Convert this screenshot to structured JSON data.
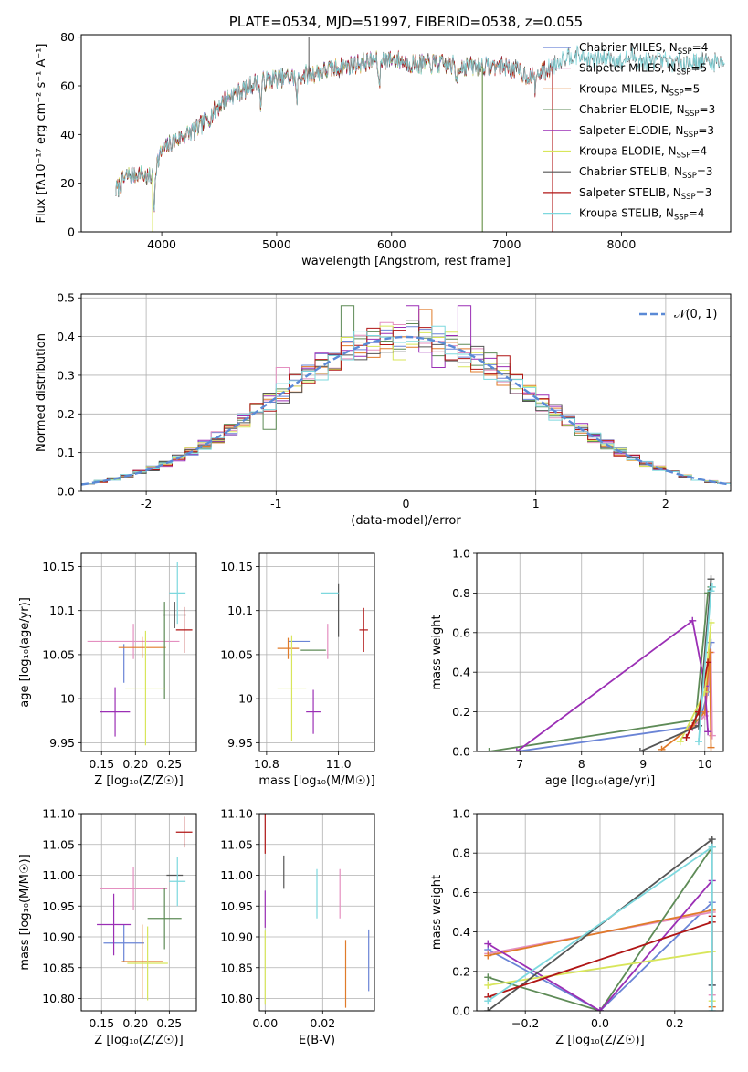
{
  "colors": {
    "Chabrier MILES": "#6a84d6",
    "Salpeter MILES": "#e48fc0",
    "Kroupa MILES": "#e07b2a",
    "Chabrier ELODIE": "#5e8b57",
    "Salpeter ELODIE": "#9b2fb5",
    "Kroupa ELODIE": "#d8e65a",
    "Chabrier STELIB": "#555555",
    "Salpeter STELIB": "#b01515",
    "Kroupa STELIB": "#7dd8de"
  },
  "chart_data": [
    {
      "id": "spectrum",
      "type": "line",
      "title": "PLATE=0534, MJD=51997, FIBERID=0538, z=0.055",
      "xlabel": "wavelength [Angstrom, rest frame]",
      "ylabel": "Flux [fλ10⁻¹⁷ erg cm⁻² s⁻¹ A⁻¹]",
      "xlim": [
        3300,
        8950
      ],
      "ylim": [
        0,
        81
      ],
      "xticks": [
        4000,
        5000,
        6000,
        7000,
        8000
      ],
      "yticks": [
        0,
        20,
        40,
        60,
        80
      ],
      "legend_location": "right",
      "legend": [
        {
          "model": "Chabrier MILES",
          "label": "Chabrier MILES, N",
          "sub": "SSP",
          "n": "=4"
        },
        {
          "model": "Salpeter MILES",
          "label": "Salpeter MILES, N",
          "sub": "SSP",
          "n": "=5"
        },
        {
          "model": "Kroupa MILES",
          "label": "Kroupa MILES, N",
          "sub": "SSP",
          "n": "=5"
        },
        {
          "model": "Chabrier ELODIE",
          "label": "Chabrier ELODIE, N",
          "sub": "SSP",
          "n": "=3"
        },
        {
          "model": "Salpeter ELODIE",
          "label": "Salpeter ELODIE, N",
          "sub": "SSP",
          "n": "=3"
        },
        {
          "model": "Kroupa ELODIE",
          "label": "Kroupa ELODIE, N",
          "sub": "SSP",
          "n": "=4"
        },
        {
          "model": "Chabrier STELIB",
          "label": "Chabrier STELIB, N",
          "sub": "SSP",
          "n": "=3"
        },
        {
          "model": "Salpeter STELIB",
          "label": "Salpeter STELIB, N",
          "sub": "SSP",
          "n": "=3"
        },
        {
          "model": "Kroupa STELIB",
          "label": "Kroupa STELIB, N",
          "sub": "SSP",
          "n": "=4"
        }
      ],
      "continuum": {
        "x": [
          3600,
          3700,
          3800,
          3900,
          4000,
          4100,
          4200,
          4300,
          4400,
          4500,
          4600,
          4700,
          4800,
          4900,
          5000,
          5200,
          5400,
          5600,
          5800,
          6000,
          6200,
          6400,
          6600,
          6800,
          7000,
          7200,
          7300,
          7400,
          7500,
          7600,
          7700,
          7800,
          7900,
          8000,
          8100,
          8200
        ],
        "y": [
          17,
          23,
          24,
          22,
          33,
          37,
          40,
          42,
          46,
          52,
          56,
          58,
          61,
          62,
          63,
          64,
          66,
          68,
          70,
          71,
          69,
          69,
          68,
          68,
          68,
          64,
          65,
          68,
          72,
          73,
          71,
          71,
          72,
          70,
          72,
          70
        ]
      },
      "dips": [
        [
          3933,
          16
        ],
        [
          4861,
          10
        ],
        [
          5175,
          10
        ],
        [
          5892,
          12
        ],
        [
          6563,
          6
        ],
        [
          7250,
          5
        ]
      ],
      "model_extents": [
        {
          "model": "Chabrier MILES",
          "xmax": 7400
        },
        {
          "model": "Salpeter MILES",
          "xmax": 7400
        },
        {
          "model": "Kroupa MILES",
          "xmax": 7400
        },
        {
          "model": "Chabrier ELODIE",
          "xmax": 6790
        },
        {
          "model": "Salpeter ELODIE",
          "xmax": 6790
        },
        {
          "model": "Kroupa ELODIE",
          "xmax": 6790
        },
        {
          "model": "Chabrier STELIB",
          "xmax": 8900
        },
        {
          "model": "Salpeter STELIB",
          "xmax": 7400
        },
        {
          "model": "Kroupa STELIB",
          "xmax": 8900
        }
      ],
      "drops": [
        {
          "model": "Kroupa ELODIE",
          "x": 3920
        },
        {
          "model": "Kroupa ELODIE",
          "x": 6790
        },
        {
          "model": "Chabrier ELODIE",
          "x": 6790
        },
        {
          "model": "Salpeter STELIB",
          "x": 7400
        },
        {
          "model": "Chabrier STELIB",
          "x": 5280
        }
      ]
    },
    {
      "id": "residuals",
      "type": "histogram",
      "xlabel": "(data-model)/error",
      "ylabel": "Normed distribution",
      "xlim": [
        -2.5,
        2.5
      ],
      "ylim": [
        0,
        0.51
      ],
      "xticks": [
        -2,
        -1,
        0,
        1,
        2
      ],
      "yticks": [
        0.0,
        0.1,
        0.2,
        0.3,
        0.4,
        0.5
      ],
      "bin_width": 0.1,
      "legend": [
        {
          "label": "𝒩(0, 1)",
          "style": "dashed",
          "color": "#5b8ad6"
        }
      ],
      "extra_peaks": [
        {
          "model": "Salpeter ELODIE",
          "x": 0.1,
          "y": 0.48
        },
        {
          "model": "Salpeter ELODIE",
          "x": 0.5,
          "y": 0.48
        },
        {
          "model": "Kroupa MILES",
          "x": 0.2,
          "y": 0.47
        },
        {
          "model": "Chabrier ELODIE",
          "x": -0.4,
          "y": 0.48
        },
        {
          "model": "Salpeter STELIB",
          "x": 0.8,
          "y": 0.35
        },
        {
          "model": "Salpeter STELIB",
          "x": 0.4,
          "y": 0.34
        },
        {
          "model": "Salpeter ELODIE",
          "x": 0.3,
          "y": 0.32
        },
        {
          "model": "Kroupa ELODIE",
          "x": 0.0,
          "y": 0.34
        },
        {
          "model": "Chabrier ELODIE",
          "x": -1.0,
          "y": 0.16
        },
        {
          "model": "Salpeter MILES",
          "x": -0.9,
          "y": 0.32
        }
      ]
    },
    {
      "id": "age-z",
      "type": "errorbar",
      "xlabel": "Z [log₁₀(Z/Z☉)]",
      "ylabel": "age  [log₁₀(age/yr)]",
      "xlim": [
        0.12,
        0.29
      ],
      "ylim": [
        9.94,
        10.165
      ],
      "xticks": [
        0.15,
        0.2,
        0.25
      ],
      "xticklabels": [
        "0.15",
        "0.20",
        "0.25"
      ],
      "yticks": [
        9.95,
        10.0,
        10.05,
        10.1,
        10.15
      ],
      "points": [
        {
          "model": "Chabrier MILES",
          "x": 0.183,
          "y": 10.04,
          "xerr": 0.0,
          "yerr": 0.022
        },
        {
          "model": "Salpeter MILES",
          "x": 0.197,
          "y": 10.065,
          "xerr": 0.068,
          "yerr": 0.02
        },
        {
          "model": "Kroupa MILES",
          "x": 0.21,
          "y": 10.058,
          "xerr": 0.035,
          "yerr": 0.012
        },
        {
          "model": "Chabrier ELODIE",
          "x": 0.243,
          "y": 10.055,
          "xerr": 0.0,
          "yerr": 0.055
        },
        {
          "model": "Salpeter ELODIE",
          "x": 0.17,
          "y": 9.985,
          "xerr": 0.022,
          "yerr": 0.028
        },
        {
          "model": "Kroupa ELODIE",
          "x": 0.215,
          "y": 10.012,
          "xerr": 0.03,
          "yerr": 0.065
        },
        {
          "model": "Chabrier STELIB",
          "x": 0.258,
          "y": 10.095,
          "xerr": 0.017,
          "yerr": 0.015
        },
        {
          "model": "Salpeter STELIB",
          "x": 0.272,
          "y": 10.078,
          "xerr": 0.012,
          "yerr": 0.026
        },
        {
          "model": "Kroupa STELIB",
          "x": 0.262,
          "y": 10.12,
          "xerr": 0.012,
          "yerr": 0.035
        }
      ]
    },
    {
      "id": "age-mass",
      "type": "errorbar",
      "xlabel": "mass [log₁₀(M/M☉)]",
      "ylabel": "",
      "xlim": [
        10.78,
        11.1
      ],
      "ylim": [
        9.94,
        10.165
      ],
      "xticks": [
        10.8,
        11.0
      ],
      "xticklabels": [
        "10.8",
        "11.0"
      ],
      "yticks": [
        9.95,
        10.0,
        10.05,
        10.1,
        10.15
      ],
      "points": [
        {
          "model": "Chabrier MILES",
          "x": 10.89,
          "y": 10.065,
          "xerr": 0.03,
          "yerr": 0.0
        },
        {
          "model": "Salpeter MILES",
          "x": 10.97,
          "y": 10.065,
          "xerr": 0.0,
          "yerr": 0.02
        },
        {
          "model": "Kroupa MILES",
          "x": 10.86,
          "y": 10.057,
          "xerr": 0.03,
          "yerr": 0.012
        },
        {
          "model": "Chabrier ELODIE",
          "x": 10.93,
          "y": 10.055,
          "xerr": 0.035,
          "yerr": 0.0
        },
        {
          "model": "Salpeter ELODIE",
          "x": 10.93,
          "y": 9.985,
          "xerr": 0.02,
          "yerr": 0.025
        },
        {
          "model": "Kroupa ELODIE",
          "x": 10.87,
          "y": 10.012,
          "xerr": 0.04,
          "yerr": 0.06
        },
        {
          "model": "Chabrier STELIB",
          "x": 11.0,
          "y": 10.1,
          "xerr": 0.0,
          "yerr": 0.03
        },
        {
          "model": "Salpeter STELIB",
          "x": 11.07,
          "y": 10.078,
          "xerr": 0.012,
          "yerr": 0.025
        },
        {
          "model": "Kroupa STELIB",
          "x": 10.975,
          "y": 10.12,
          "xerr": 0.025,
          "yerr": 0.0
        }
      ]
    },
    {
      "id": "mass-weight-age",
      "type": "line",
      "xlabel": "age  [log₁₀(age/yr)]",
      "ylabel": "mass weight",
      "xlim": [
        6.3,
        10.3
      ],
      "ylim": [
        0,
        1.0
      ],
      "xticks": [
        7,
        8,
        9,
        10
      ],
      "yticks": [
        0.0,
        0.2,
        0.4,
        0.6,
        0.8,
        1.0
      ],
      "series": [
        {
          "model": "Chabrier MILES",
          "x": [
            6.95,
            9.9,
            10.05,
            10.1
          ],
          "y": [
            0.0,
            0.13,
            0.3,
            0.55
          ]
        },
        {
          "model": "Salpeter MILES",
          "x": [
            9.8,
            10.0,
            10.1,
            10.12
          ],
          "y": [
            0.12,
            0.18,
            0.5,
            0.08
          ]
        },
        {
          "model": "Kroupa MILES",
          "x": [
            9.3,
            9.8,
            10.0,
            10.08,
            10.1
          ],
          "y": [
            0.01,
            0.13,
            0.2,
            0.5,
            0.02
          ]
        },
        {
          "model": "Chabrier ELODIE",
          "x": [
            6.5,
            9.85,
            10.05,
            10.1
          ],
          "y": [
            0.0,
            0.16,
            0.8,
            0.83
          ]
        },
        {
          "model": "Salpeter ELODIE",
          "x": [
            6.95,
            9.8,
            10.0,
            10.05
          ],
          "y": [
            0.0,
            0.66,
            0.33,
            0.1
          ]
        },
        {
          "model": "Kroupa ELODIE",
          "x": [
            9.6,
            10.0,
            10.1
          ],
          "y": [
            0.05,
            0.3,
            0.65
          ]
        },
        {
          "model": "Chabrier STELIB",
          "x": [
            8.95,
            9.9,
            10.1
          ],
          "y": [
            0.0,
            0.13,
            0.87
          ]
        },
        {
          "model": "Salpeter STELIB",
          "x": [
            9.7,
            9.9,
            10.05
          ],
          "y": [
            0.07,
            0.2,
            0.45
          ]
        },
        {
          "model": "Kroupa STELIB",
          "x": [
            9.9,
            10.1,
            10.12
          ],
          "y": [
            0.05,
            0.81,
            0.83
          ]
        }
      ]
    },
    {
      "id": "mass-z",
      "type": "errorbar",
      "xlabel": "Z [log₁₀(Z/Z☉)]",
      "ylabel": "mass [log₁₀(M/M☉)]",
      "xlim": [
        0.12,
        0.29
      ],
      "ylim": [
        10.78,
        11.1
      ],
      "xticks": [
        0.15,
        0.2,
        0.25
      ],
      "xticklabels": [
        "0.15",
        "0.20",
        "0.25"
      ],
      "yticks": [
        10.8,
        10.85,
        10.9,
        10.95,
        11.0,
        11.05,
        11.1
      ],
      "yticklabels": [
        "10.80",
        "10.85",
        "10.90",
        "10.95",
        "11.00",
        "11.05",
        "11.10"
      ],
      "points": [
        {
          "model": "Chabrier MILES",
          "x": 0.183,
          "y": 10.89,
          "xerr": 0.03,
          "yerr": 0.03
        },
        {
          "model": "Salpeter MILES",
          "x": 0.197,
          "y": 10.978,
          "xerr": 0.05,
          "yerr": 0.035
        },
        {
          "model": "Kroupa MILES",
          "x": 0.21,
          "y": 10.86,
          "xerr": 0.03,
          "yerr": 0.06
        },
        {
          "model": "Chabrier ELODIE",
          "x": 0.243,
          "y": 10.93,
          "xerr": 0.025,
          "yerr": 0.05
        },
        {
          "model": "Salpeter ELODIE",
          "x": 0.168,
          "y": 10.92,
          "xerr": 0.025,
          "yerr": 0.05
        },
        {
          "model": "Kroupa ELODIE",
          "x": 0.218,
          "y": 10.857,
          "xerr": 0.03,
          "yerr": 0.06
        },
        {
          "model": "Chabrier STELIB",
          "x": 0.258,
          "y": 11.0,
          "xerr": 0.012,
          "yerr": 0.0
        },
        {
          "model": "Salpeter STELIB",
          "x": 0.272,
          "y": 11.07,
          "xerr": 0.012,
          "yerr": 0.025
        },
        {
          "model": "Kroupa STELIB",
          "x": 0.262,
          "y": 10.99,
          "xerr": 0.012,
          "yerr": 0.04
        }
      ]
    },
    {
      "id": "mass-ebv",
      "type": "errorbar",
      "xlabel": "E(B-V)",
      "ylabel": "",
      "xlim": [
        -0.002,
        0.038
      ],
      "ylim": [
        10.78,
        11.1
      ],
      "xticks": [
        0.0,
        0.02
      ],
      "xticklabels": [
        "0.00",
        "0.02"
      ],
      "yticks": [
        10.8,
        10.85,
        10.9,
        10.95,
        11.0,
        11.05,
        11.1
      ],
      "yticklabels": [
        "10.80",
        "10.85",
        "10.90",
        "10.95",
        "11.00",
        "11.05",
        "11.10"
      ],
      "points": [
        {
          "model": "Chabrier MILES",
          "x": 0.036,
          "y": 10.862,
          "xerr": 0.0,
          "yerr": 0.05
        },
        {
          "model": "Salpeter MILES",
          "x": 0.026,
          "y": 10.97,
          "xerr": 0.0,
          "yerr": 0.04
        },
        {
          "model": "Kroupa MILES",
          "x": 0.028,
          "y": 10.84,
          "xerr": 0.0,
          "yerr": 0.055
        },
        {
          "model": "Chabrier ELODIE",
          "x": 0.0,
          "y": 10.8,
          "xerr": 0.0,
          "yerr": 0.0
        },
        {
          "model": "Salpeter ELODIE",
          "x": 0.0,
          "y": 10.945,
          "xerr": 0.0,
          "yerr": 0.03
        },
        {
          "model": "Kroupa ELODIE",
          "x": 0.0,
          "y": 10.85,
          "xerr": 0.0,
          "yerr": 0.06
        },
        {
          "model": "Chabrier STELIB",
          "x": 0.0065,
          "y": 11.005,
          "xerr": 0.0,
          "yerr": 0.027
        },
        {
          "model": "Salpeter STELIB",
          "x": 0.0,
          "y": 11.07,
          "xerr": 0.0,
          "yerr": 0.035
        },
        {
          "model": "Kroupa STELIB",
          "x": 0.018,
          "y": 10.97,
          "xerr": 0.0,
          "yerr": 0.04
        }
      ]
    },
    {
      "id": "mass-weight-z",
      "type": "line",
      "xlabel": "Z [log₁₀(Z/Z☉)]",
      "ylabel": "mass weight",
      "xlim": [
        -0.33,
        0.33
      ],
      "ylim": [
        0,
        1.0
      ],
      "xticks": [
        -0.2,
        0.0,
        0.2
      ],
      "xticklabels": [
        "−0.2",
        "0.0",
        "0.2"
      ],
      "yticks": [
        0.0,
        0.2,
        0.4,
        0.6,
        0.8,
        1.0
      ],
      "series": [
        {
          "model": "Chabrier MILES",
          "x": [
            -0.3,
            0.0,
            0.3,
            0.3
          ],
          "y": [
            0.31,
            0.0,
            0.55,
            0.13
          ]
        },
        {
          "model": "Salpeter MILES",
          "x": [
            -0.3,
            0.3,
            0.3
          ],
          "y": [
            0.29,
            0.5,
            0.08
          ]
        },
        {
          "model": "Kroupa MILES",
          "x": [
            -0.3,
            0.3,
            0.3
          ],
          "y": [
            0.28,
            0.51,
            0.02
          ]
        },
        {
          "model": "Chabrier ELODIE",
          "x": [
            -0.3,
            0.0,
            0.3
          ],
          "y": [
            0.17,
            0.0,
            0.83
          ]
        },
        {
          "model": "Salpeter ELODIE",
          "x": [
            -0.3,
            0.0,
            0.3
          ],
          "y": [
            0.34,
            0.0,
            0.66
          ]
        },
        {
          "model": "Kroupa ELODIE",
          "x": [
            -0.3,
            0.3,
            0.3
          ],
          "y": [
            0.13,
            0.3,
            0.05
          ]
        },
        {
          "model": "Chabrier STELIB",
          "x": [
            -0.3,
            0.3,
            0.3
          ],
          "y": [
            0.0,
            0.87,
            0.13
          ]
        },
        {
          "model": "Salpeter STELIB",
          "x": [
            -0.3,
            0.3,
            0.3
          ],
          "y": [
            0.07,
            0.45,
            0.48
          ]
        },
        {
          "model": "Kroupa STELIB",
          "x": [
            -0.3,
            0.3,
            0.3
          ],
          "y": [
            0.05,
            0.83,
            0.0
          ]
        }
      ]
    }
  ]
}
